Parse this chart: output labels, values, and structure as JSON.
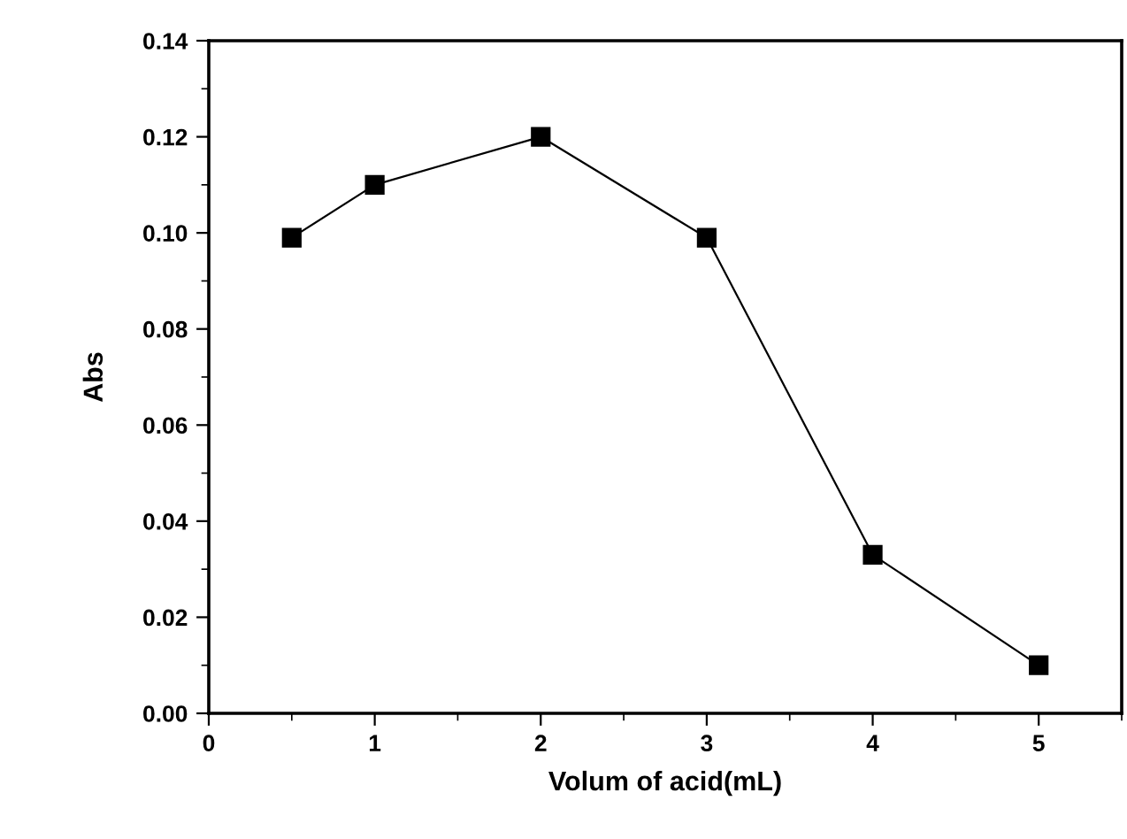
{
  "chart_data": {
    "type": "line",
    "xlabel": "Volum of acid(mL)",
    "ylabel": "Abs",
    "x": [
      0.5,
      1,
      2,
      3,
      4,
      5
    ],
    "series": [
      {
        "color": "#000000",
        "values": [
          0.099,
          0.11,
          0.12,
          0.099,
          0.033,
          0.01
        ]
      }
    ],
    "xlim": [
      0,
      5.5
    ],
    "ylim": [
      0,
      0.14
    ],
    "xticks": [
      0,
      1,
      2,
      3,
      4,
      5
    ],
    "yticks": [
      {
        "value": 0,
        "label": "0.00"
      },
      {
        "value": 0.02,
        "label": "0.02"
      },
      {
        "value": 0.04,
        "label": "0.04"
      },
      {
        "value": 0.06,
        "label": "0.06"
      },
      {
        "value": 0.08,
        "label": "0.08"
      },
      {
        "value": 0.1,
        "label": "0.10"
      },
      {
        "value": 0.12,
        "label": "0.12"
      },
      {
        "value": 0.14,
        "label": "0.14"
      }
    ],
    "marker": "square",
    "line_style": "solid",
    "grid": false,
    "legend": false
  }
}
